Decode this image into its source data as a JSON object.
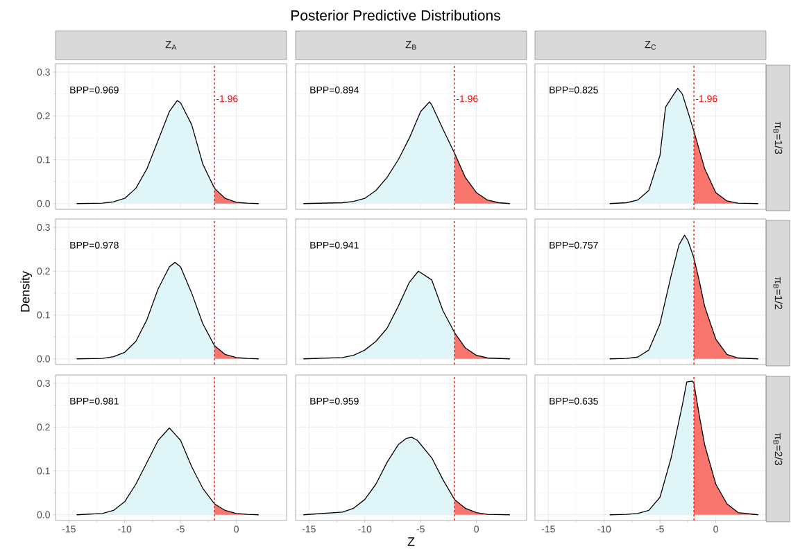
{
  "chart_data": [
    {
      "type": "area",
      "title": "Z$_{A}$",
      "annotations": [
        "BPP=0.969"
      ],
      "xlim": [
        -16.2,
        4.5
      ],
      "ylim": [
        -0.013,
        0.319
      ],
      "xticks": [
        -15,
        -10,
        -5,
        0
      ],
      "yticks": [
        {
          "value": 0,
          "label": "0.0"
        },
        {
          "value": 0.1,
          "label": "0.1"
        },
        {
          "value": 0.2,
          "label": "0.2"
        },
        {
          "value": 0.3,
          "label": "0.3"
        }
      ],
      "grid": true,
      "tick_labels": "y",
      "ref_lines": [
        {
          "axis": "x",
          "value": -1.96,
          "label": "-1.96",
          "color": "#ff0000",
          "line_style": "dashed"
        }
      ],
      "series": [
        {
          "color": "#e0f5f7",
          "x": [
            -14.3,
            -12,
            -11,
            -10,
            -9,
            -8,
            -7,
            -6,
            -5.3,
            -5,
            -4,
            -3,
            -1.96
          ],
          "values": [
            0,
            0.001,
            0.004,
            0.012,
            0.035,
            0.08,
            0.145,
            0.21,
            0.235,
            0.23,
            0.18,
            0.09,
            0.035
          ]
        },
        {
          "color": "#f8766d",
          "x": [
            -1.96,
            -1,
            0,
            1,
            2
          ],
          "values": [
            0.035,
            0.012,
            0.003,
            0.001,
            0
          ]
        },
        {
          "type": "line",
          "color": "#000000",
          "x": [
            -14.3,
            -12,
            -11,
            -10,
            -9,
            -8,
            -7,
            -6,
            -5.3,
            -5,
            -4,
            -3,
            -1.96,
            -1,
            0,
            1,
            2
          ],
          "values": [
            0,
            0.001,
            0.004,
            0.012,
            0.035,
            0.08,
            0.145,
            0.21,
            0.235,
            0.23,
            0.18,
            0.09,
            0.035,
            0.012,
            0.003,
            0.001,
            0
          ]
        }
      ]
    },
    {
      "type": "area",
      "title": "Z$_{B}$",
      "annotations": [
        "BPP=0.894",
        "Posterior Predictive Distributions"
      ],
      "xlim": [
        -16.2,
        4.5
      ],
      "ylim": [
        -0.013,
        0.319
      ],
      "xticks": [
        -15,
        -10,
        -5,
        0
      ],
      "yticks": [
        0,
        0.1,
        0.2,
        0.3
      ],
      "grid": true,
      "tick_labels": false,
      "ref_lines": [
        {
          "axis": "x",
          "value": -1.96,
          "label": "-1.96",
          "color": "#ff0000",
          "line_style": "dashed"
        }
      ],
      "series": [
        {
          "color": "#e0f5f7",
          "x": [
            -15.5,
            -12,
            -11,
            -10,
            -9,
            -8,
            -7,
            -6,
            -5,
            -4.2,
            -4,
            -3,
            -1.96
          ],
          "values": [
            0,
            0.002,
            0.005,
            0.012,
            0.03,
            0.06,
            0.1,
            0.15,
            0.21,
            0.232,
            0.225,
            0.17,
            0.115
          ]
        },
        {
          "color": "#f8766d",
          "x": [
            -1.96,
            -1,
            0,
            1,
            2,
            3
          ],
          "values": [
            0.115,
            0.06,
            0.025,
            0.008,
            0.002,
            0
          ]
        },
        {
          "type": "line",
          "color": "#000000",
          "x": [
            -15.5,
            -12,
            -11,
            -10,
            -9,
            -8,
            -7,
            -6,
            -5,
            -4.2,
            -4,
            -3,
            -1.96,
            -1,
            0,
            1,
            2,
            3
          ],
          "values": [
            0,
            0.002,
            0.005,
            0.012,
            0.03,
            0.06,
            0.1,
            0.15,
            0.21,
            0.232,
            0.225,
            0.17,
            0.115,
            0.06,
            0.025,
            0.008,
            0.002,
            0
          ]
        }
      ]
    },
    {
      "type": "area",
      "title": "Z$_{C}$",
      "y2label": "π$_{B}$=1/3",
      "annotations": [
        "BPP=0.825"
      ],
      "xlim": [
        -16.2,
        4.5
      ],
      "ylim": [
        -0.013,
        0.319
      ],
      "xticks": [
        -15,
        -10,
        -5,
        0
      ],
      "yticks": [
        0,
        0.1,
        0.2,
        0.3
      ],
      "grid": true,
      "tick_labels": false,
      "ref_lines": [
        {
          "axis": "x",
          "value": -1.96,
          "label": "-1.96",
          "color": "#ff0000",
          "line_style": "dashed"
        }
      ],
      "series": [
        {
          "color": "#e0f5f7",
          "x": [
            -9.5,
            -8,
            -7,
            -6,
            -5,
            -4.5,
            -4,
            -3.4,
            -3,
            -2.5,
            -1.96
          ],
          "values": [
            0,
            0.002,
            0.008,
            0.03,
            0.11,
            0.22,
            0.24,
            0.263,
            0.25,
            0.21,
            0.165
          ]
        },
        {
          "color": "#f8766d",
          "x": [
            -1.96,
            -1,
            0,
            1,
            2,
            3.8
          ],
          "values": [
            0.165,
            0.08,
            0.025,
            0.006,
            0.001,
            0
          ]
        },
        {
          "type": "line",
          "color": "#000000",
          "x": [
            -9.5,
            -8,
            -7,
            -6,
            -5,
            -4.5,
            -4,
            -3.4,
            -3,
            -2.5,
            -1.96,
            -1,
            0,
            1,
            2,
            3.8
          ],
          "values": [
            0,
            0.002,
            0.008,
            0.03,
            0.11,
            0.22,
            0.24,
            0.263,
            0.25,
            0.21,
            0.165,
            0.08,
            0.025,
            0.006,
            0.001,
            0
          ]
        }
      ]
    },
    {
      "type": "area",
      "ylabel": "Density",
      "annotations": [
        "BPP=0.978"
      ],
      "xlim": [
        -16.2,
        4.5
      ],
      "ylim": [
        -0.013,
        0.319
      ],
      "xticks": [
        -15,
        -10,
        -5,
        0
      ],
      "yticks": [
        {
          "value": 0,
          "label": "0.0"
        },
        {
          "value": 0.1,
          "label": "0.1"
        },
        {
          "value": 0.2,
          "label": "0.2"
        },
        {
          "value": 0.3,
          "label": "0.3"
        }
      ],
      "grid": true,
      "tick_labels": "y",
      "ref_lines": [
        {
          "axis": "x",
          "value": -1.96,
          "color": "#ff0000",
          "line_style": "dashed"
        }
      ],
      "series": [
        {
          "color": "#e0f5f7",
          "x": [
            -14.3,
            -12,
            -11,
            -10,
            -9,
            -8,
            -7,
            -6,
            -5.5,
            -5,
            -4,
            -3,
            -1.96
          ],
          "values": [
            0,
            0.001,
            0.005,
            0.015,
            0.04,
            0.09,
            0.16,
            0.21,
            0.22,
            0.21,
            0.15,
            0.08,
            0.03
          ]
        },
        {
          "color": "#f8766d",
          "x": [
            -1.96,
            -1,
            0,
            1,
            2
          ],
          "values": [
            0.03,
            0.01,
            0.003,
            0.001,
            0
          ]
        },
        {
          "type": "line",
          "color": "#000000",
          "x": [
            -14.3,
            -12,
            -11,
            -10,
            -9,
            -8,
            -7,
            -6,
            -5.5,
            -5,
            -4,
            -3,
            -1.96,
            -1,
            0,
            1,
            2
          ],
          "values": [
            0,
            0.001,
            0.005,
            0.015,
            0.04,
            0.09,
            0.16,
            0.21,
            0.22,
            0.21,
            0.15,
            0.08,
            0.03,
            0.01,
            0.003,
            0.001,
            0
          ]
        }
      ]
    },
    {
      "type": "area",
      "annotations": [
        "BPP=0.941"
      ],
      "xlim": [
        -16.2,
        4.5
      ],
      "ylim": [
        -0.013,
        0.319
      ],
      "xticks": [
        -15,
        -10,
        -5,
        0
      ],
      "yticks": [
        0,
        0.1,
        0.2,
        0.3
      ],
      "grid": true,
      "tick_labels": false,
      "ref_lines": [
        {
          "axis": "x",
          "value": -1.96,
          "color": "#ff0000",
          "line_style": "dashed"
        }
      ],
      "series": [
        {
          "color": "#e0f5f7",
          "x": [
            -15.5,
            -12,
            -11,
            -10,
            -9,
            -8,
            -7,
            -6,
            -5.2,
            -4,
            -3,
            -1.96
          ],
          "values": [
            0,
            0.003,
            0.008,
            0.02,
            0.04,
            0.07,
            0.12,
            0.175,
            0.2,
            0.18,
            0.11,
            0.06
          ]
        },
        {
          "color": "#f8766d",
          "x": [
            -1.96,
            -1,
            0,
            1,
            3
          ],
          "values": [
            0.06,
            0.025,
            0.008,
            0.002,
            0
          ]
        },
        {
          "type": "line",
          "color": "#000000",
          "x": [
            -15.5,
            -12,
            -11,
            -10,
            -9,
            -8,
            -7,
            -6,
            -5.2,
            -4,
            -3,
            -1.96,
            -1,
            0,
            1,
            3
          ],
          "values": [
            0,
            0.003,
            0.008,
            0.02,
            0.04,
            0.07,
            0.12,
            0.175,
            0.2,
            0.18,
            0.11,
            0.06,
            0.025,
            0.008,
            0.002,
            0
          ]
        }
      ]
    },
    {
      "type": "area",
      "y2label": "π$_{B}$=1/2",
      "annotations": [
        "BPP=0.757"
      ],
      "xlim": [
        -16.2,
        4.5
      ],
      "ylim": [
        -0.013,
        0.319
      ],
      "xticks": [
        -15,
        -10,
        -5,
        0
      ],
      "yticks": [
        0,
        0.1,
        0.2,
        0.3
      ],
      "grid": true,
      "tick_labels": false,
      "ref_lines": [
        {
          "axis": "x",
          "value": -1.96,
          "color": "#ff0000",
          "line_style": "dashed"
        }
      ],
      "series": [
        {
          "color": "#e0f5f7",
          "x": [
            -9.5,
            -8,
            -7,
            -6,
            -5,
            -4,
            -3.3,
            -2.8,
            -2.5,
            -1.96
          ],
          "values": [
            0,
            0.001,
            0.004,
            0.02,
            0.08,
            0.19,
            0.26,
            0.282,
            0.27,
            0.23
          ]
        },
        {
          "color": "#f8766d",
          "x": [
            -1.96,
            -1.5,
            -1,
            0,
            1,
            2,
            3.8
          ],
          "values": [
            0.23,
            0.18,
            0.12,
            0.045,
            0.01,
            0.002,
            0
          ]
        },
        {
          "type": "line",
          "color": "#000000",
          "x": [
            -9.5,
            -8,
            -7,
            -6,
            -5,
            -4,
            -3.3,
            -2.8,
            -2.5,
            -1.96,
            -1.5,
            -1,
            0,
            1,
            2,
            3.8
          ],
          "values": [
            0,
            0.001,
            0.004,
            0.02,
            0.08,
            0.19,
            0.26,
            0.282,
            0.27,
            0.23,
            0.18,
            0.12,
            0.045,
            0.01,
            0.002,
            0
          ]
        }
      ]
    },
    {
      "type": "area",
      "annotations": [
        "BPP=0.981"
      ],
      "xlim": [
        -16.2,
        4.5
      ],
      "ylim": [
        -0.013,
        0.319
      ],
      "xticks": [
        -15,
        -10,
        -5,
        0
      ],
      "yticks": [
        {
          "value": 0,
          "label": "0.0"
        },
        {
          "value": 0.1,
          "label": "0.1"
        },
        {
          "value": 0.2,
          "label": "0.2"
        },
        {
          "value": 0.3,
          "label": "0.3"
        }
      ],
      "grid": true,
      "ref_lines": [
        {
          "axis": "x",
          "value": -1.96,
          "color": "#ff0000",
          "line_style": "dashed"
        }
      ],
      "series": [
        {
          "color": "#e0f5f7",
          "x": [
            -14.3,
            -12,
            -11,
            -10,
            -9,
            -8,
            -7,
            -6,
            -5,
            -4,
            -3,
            -1.96
          ],
          "values": [
            0,
            0.003,
            0.01,
            0.03,
            0.07,
            0.12,
            0.17,
            0.198,
            0.17,
            0.11,
            0.06,
            0.025
          ]
        },
        {
          "color": "#f8766d",
          "x": [
            -1.96,
            -1,
            0,
            1,
            2
          ],
          "values": [
            0.025,
            0.01,
            0.003,
            0.001,
            0
          ]
        },
        {
          "type": "line",
          "color": "#000000",
          "x": [
            -14.3,
            -12,
            -11,
            -10,
            -9,
            -8,
            -7,
            -6,
            -5,
            -4,
            -3,
            -1.96,
            -1,
            0,
            1,
            2
          ],
          "values": [
            0,
            0.003,
            0.01,
            0.03,
            0.07,
            0.12,
            0.17,
            0.198,
            0.17,
            0.11,
            0.06,
            0.025,
            0.01,
            0.003,
            0.001,
            0
          ]
        }
      ]
    },
    {
      "type": "area",
      "xlabel": "Z",
      "annotations": [
        "BPP=0.959"
      ],
      "xlim": [
        -16.2,
        4.5
      ],
      "ylim": [
        -0.013,
        0.319
      ],
      "xticks": [
        -15,
        -10,
        -5,
        0
      ],
      "yticks": [
        0,
        0.1,
        0.2,
        0.3
      ],
      "grid": true,
      "tick_labels": "x",
      "ref_lines": [
        {
          "axis": "x",
          "value": -1.96,
          "color": "#ff0000",
          "line_style": "dashed"
        }
      ],
      "series": [
        {
          "color": "#e0f5f7",
          "x": [
            -15.5,
            -12,
            -11,
            -10,
            -9,
            -8,
            -7,
            -6.3,
            -5.8,
            -5.3,
            -4,
            -3,
            -1.96
          ],
          "values": [
            0,
            0.006,
            0.015,
            0.035,
            0.07,
            0.12,
            0.16,
            0.174,
            0.177,
            0.17,
            0.13,
            0.08,
            0.035
          ]
        },
        {
          "color": "#f8766d",
          "x": [
            -1.96,
            -1,
            0,
            1,
            3
          ],
          "values": [
            0.035,
            0.015,
            0.005,
            0.001,
            0
          ]
        },
        {
          "type": "line",
          "color": "#000000",
          "x": [
            -15.5,
            -12,
            -11,
            -10,
            -9,
            -8,
            -7,
            -6.3,
            -5.8,
            -5.3,
            -4,
            -3,
            -1.96,
            -1,
            0,
            1,
            3
          ],
          "values": [
            0,
            0.006,
            0.015,
            0.035,
            0.07,
            0.12,
            0.16,
            0.174,
            0.177,
            0.17,
            0.13,
            0.08,
            0.035,
            0.015,
            0.005,
            0.001,
            0
          ]
        }
      ]
    },
    {
      "type": "area",
      "y2label": "π$_{B}$=2/3",
      "annotations": [
        "BPP=0.635"
      ],
      "xlim": [
        -16.2,
        4.5
      ],
      "ylim": [
        -0.013,
        0.319
      ],
      "xticks": [
        -15,
        -10,
        -5,
        0
      ],
      "yticks": [
        0,
        0.1,
        0.2,
        0.3
      ],
      "grid": true,
      "tick_labels": "x",
      "ref_lines": [
        {
          "axis": "x",
          "value": -1.96,
          "color": "#ff0000",
          "line_style": "dashed"
        }
      ],
      "series": [
        {
          "color": "#e0f5f7",
          "x": [
            -9.5,
            -8,
            -7,
            -6,
            -5,
            -4,
            -3,
            -2.6,
            -2.1,
            -1.96
          ],
          "values": [
            0,
            0.001,
            0.003,
            0.01,
            0.04,
            0.13,
            0.25,
            0.303,
            0.305,
            0.3
          ]
        },
        {
          "color": "#f8766d",
          "x": [
            -1.96,
            -1.5,
            -1,
            0,
            1,
            2,
            3.8
          ],
          "values": [
            0.3,
            0.23,
            0.16,
            0.07,
            0.025,
            0.005,
            0
          ]
        },
        {
          "type": "line",
          "color": "#000000",
          "x": [
            -9.5,
            -8,
            -7,
            -6,
            -5,
            -4,
            -3,
            -2.6,
            -2.1,
            -1.96,
            -1.5,
            -1,
            0,
            1,
            2,
            3.8
          ],
          "values": [
            0,
            0.001,
            0.003,
            0.01,
            0.04,
            0.13,
            0.25,
            0.303,
            0.305,
            0.3,
            0.23,
            0.16,
            0.07,
            0.025,
            0.005,
            0
          ]
        }
      ]
    }
  ]
}
